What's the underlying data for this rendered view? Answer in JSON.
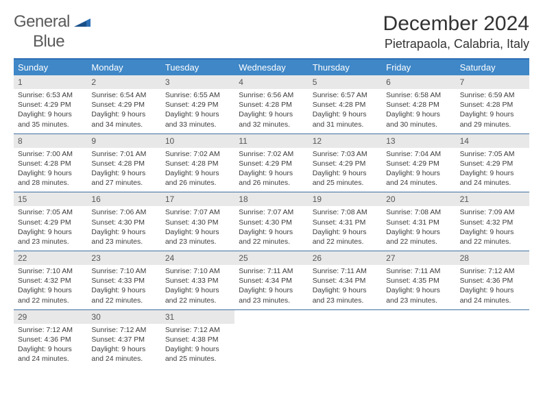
{
  "logo": {
    "line1": "General",
    "line2": "Blue"
  },
  "title": "December 2024",
  "location": "Pietrapaola, Calabria, Italy",
  "colors": {
    "header_bg": "#3f87c7",
    "row_divider": "#3f6fa0",
    "day_head_bg": "#e8e8e8",
    "text": "#3b3b3b",
    "logo_grey": "#5a5a5a",
    "logo_blue": "#2d6fb4"
  },
  "weekdays": [
    "Sunday",
    "Monday",
    "Tuesday",
    "Wednesday",
    "Thursday",
    "Friday",
    "Saturday"
  ],
  "weeks": [
    [
      {
        "n": "1",
        "sr": "Sunrise: 6:53 AM",
        "ss": "Sunset: 4:29 PM",
        "d1": "Daylight: 9 hours",
        "d2": "and 35 minutes."
      },
      {
        "n": "2",
        "sr": "Sunrise: 6:54 AM",
        "ss": "Sunset: 4:29 PM",
        "d1": "Daylight: 9 hours",
        "d2": "and 34 minutes."
      },
      {
        "n": "3",
        "sr": "Sunrise: 6:55 AM",
        "ss": "Sunset: 4:29 PM",
        "d1": "Daylight: 9 hours",
        "d2": "and 33 minutes."
      },
      {
        "n": "4",
        "sr": "Sunrise: 6:56 AM",
        "ss": "Sunset: 4:28 PM",
        "d1": "Daylight: 9 hours",
        "d2": "and 32 minutes."
      },
      {
        "n": "5",
        "sr": "Sunrise: 6:57 AM",
        "ss": "Sunset: 4:28 PM",
        "d1": "Daylight: 9 hours",
        "d2": "and 31 minutes."
      },
      {
        "n": "6",
        "sr": "Sunrise: 6:58 AM",
        "ss": "Sunset: 4:28 PM",
        "d1": "Daylight: 9 hours",
        "d2": "and 30 minutes."
      },
      {
        "n": "7",
        "sr": "Sunrise: 6:59 AM",
        "ss": "Sunset: 4:28 PM",
        "d1": "Daylight: 9 hours",
        "d2": "and 29 minutes."
      }
    ],
    [
      {
        "n": "8",
        "sr": "Sunrise: 7:00 AM",
        "ss": "Sunset: 4:28 PM",
        "d1": "Daylight: 9 hours",
        "d2": "and 28 minutes."
      },
      {
        "n": "9",
        "sr": "Sunrise: 7:01 AM",
        "ss": "Sunset: 4:28 PM",
        "d1": "Daylight: 9 hours",
        "d2": "and 27 minutes."
      },
      {
        "n": "10",
        "sr": "Sunrise: 7:02 AM",
        "ss": "Sunset: 4:28 PM",
        "d1": "Daylight: 9 hours",
        "d2": "and 26 minutes."
      },
      {
        "n": "11",
        "sr": "Sunrise: 7:02 AM",
        "ss": "Sunset: 4:29 PM",
        "d1": "Daylight: 9 hours",
        "d2": "and 26 minutes."
      },
      {
        "n": "12",
        "sr": "Sunrise: 7:03 AM",
        "ss": "Sunset: 4:29 PM",
        "d1": "Daylight: 9 hours",
        "d2": "and 25 minutes."
      },
      {
        "n": "13",
        "sr": "Sunrise: 7:04 AM",
        "ss": "Sunset: 4:29 PM",
        "d1": "Daylight: 9 hours",
        "d2": "and 24 minutes."
      },
      {
        "n": "14",
        "sr": "Sunrise: 7:05 AM",
        "ss": "Sunset: 4:29 PM",
        "d1": "Daylight: 9 hours",
        "d2": "and 24 minutes."
      }
    ],
    [
      {
        "n": "15",
        "sr": "Sunrise: 7:05 AM",
        "ss": "Sunset: 4:29 PM",
        "d1": "Daylight: 9 hours",
        "d2": "and 23 minutes."
      },
      {
        "n": "16",
        "sr": "Sunrise: 7:06 AM",
        "ss": "Sunset: 4:30 PM",
        "d1": "Daylight: 9 hours",
        "d2": "and 23 minutes."
      },
      {
        "n": "17",
        "sr": "Sunrise: 7:07 AM",
        "ss": "Sunset: 4:30 PM",
        "d1": "Daylight: 9 hours",
        "d2": "and 23 minutes."
      },
      {
        "n": "18",
        "sr": "Sunrise: 7:07 AM",
        "ss": "Sunset: 4:30 PM",
        "d1": "Daylight: 9 hours",
        "d2": "and 22 minutes."
      },
      {
        "n": "19",
        "sr": "Sunrise: 7:08 AM",
        "ss": "Sunset: 4:31 PM",
        "d1": "Daylight: 9 hours",
        "d2": "and 22 minutes."
      },
      {
        "n": "20",
        "sr": "Sunrise: 7:08 AM",
        "ss": "Sunset: 4:31 PM",
        "d1": "Daylight: 9 hours",
        "d2": "and 22 minutes."
      },
      {
        "n": "21",
        "sr": "Sunrise: 7:09 AM",
        "ss": "Sunset: 4:32 PM",
        "d1": "Daylight: 9 hours",
        "d2": "and 22 minutes."
      }
    ],
    [
      {
        "n": "22",
        "sr": "Sunrise: 7:10 AM",
        "ss": "Sunset: 4:32 PM",
        "d1": "Daylight: 9 hours",
        "d2": "and 22 minutes."
      },
      {
        "n": "23",
        "sr": "Sunrise: 7:10 AM",
        "ss": "Sunset: 4:33 PM",
        "d1": "Daylight: 9 hours",
        "d2": "and 22 minutes."
      },
      {
        "n": "24",
        "sr": "Sunrise: 7:10 AM",
        "ss": "Sunset: 4:33 PM",
        "d1": "Daylight: 9 hours",
        "d2": "and 22 minutes."
      },
      {
        "n": "25",
        "sr": "Sunrise: 7:11 AM",
        "ss": "Sunset: 4:34 PM",
        "d1": "Daylight: 9 hours",
        "d2": "and 23 minutes."
      },
      {
        "n": "26",
        "sr": "Sunrise: 7:11 AM",
        "ss": "Sunset: 4:34 PM",
        "d1": "Daylight: 9 hours",
        "d2": "and 23 minutes."
      },
      {
        "n": "27",
        "sr": "Sunrise: 7:11 AM",
        "ss": "Sunset: 4:35 PM",
        "d1": "Daylight: 9 hours",
        "d2": "and 23 minutes."
      },
      {
        "n": "28",
        "sr": "Sunrise: 7:12 AM",
        "ss": "Sunset: 4:36 PM",
        "d1": "Daylight: 9 hours",
        "d2": "and 24 minutes."
      }
    ],
    [
      {
        "n": "29",
        "sr": "Sunrise: 7:12 AM",
        "ss": "Sunset: 4:36 PM",
        "d1": "Daylight: 9 hours",
        "d2": "and 24 minutes."
      },
      {
        "n": "30",
        "sr": "Sunrise: 7:12 AM",
        "ss": "Sunset: 4:37 PM",
        "d1": "Daylight: 9 hours",
        "d2": "and 24 minutes."
      },
      {
        "n": "31",
        "sr": "Sunrise: 7:12 AM",
        "ss": "Sunset: 4:38 PM",
        "d1": "Daylight: 9 hours",
        "d2": "and 25 minutes."
      },
      null,
      null,
      null,
      null
    ]
  ]
}
